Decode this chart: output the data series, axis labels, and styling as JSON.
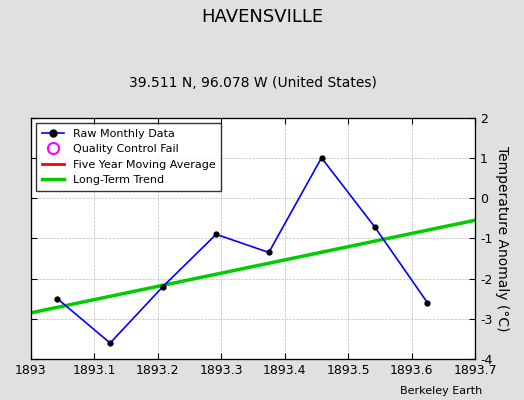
{
  "title": "HAVENSVILLE",
  "subtitle": "39.511 N, 96.078 W (United States)",
  "ylabel": "Temperature Anomaly (°C)",
  "credit": "Berkeley Earth",
  "xlim": [
    1893.0,
    1893.7
  ],
  "ylim": [
    -4,
    2
  ],
  "yticks": [
    -4,
    -3,
    -2,
    -1,
    0,
    1,
    2
  ],
  "xticks": [
    1893.0,
    1893.1,
    1893.2,
    1893.3,
    1893.4,
    1893.5,
    1893.6,
    1893.7
  ],
  "xticklabels": [
    "1893",
    "1893.1",
    "1893.2",
    "1893.3",
    "1893.4",
    "1893.5",
    "1893.6",
    "1893.7"
  ],
  "raw_x": [
    1893.042,
    1893.125,
    1893.208,
    1893.292,
    1893.375,
    1893.458,
    1893.542,
    1893.625
  ],
  "raw_y": [
    -2.5,
    -3.6,
    -2.2,
    -0.9,
    -1.35,
    1.0,
    -0.72,
    -2.6
  ],
  "trend_x": [
    1893.0,
    1893.7
  ],
  "trend_y": [
    -2.85,
    -0.55
  ],
  "raw_color": "#0000FF",
  "trend_color": "#00CC00",
  "moving_avg_color": "#FF0000",
  "background_color": "#E0E0E0",
  "plot_bg_color": "#FFFFFF",
  "grid_color": "#AAAAAA",
  "title_fontsize": 13,
  "subtitle_fontsize": 10,
  "tick_fontsize": 9,
  "ylabel_fontsize": 10
}
